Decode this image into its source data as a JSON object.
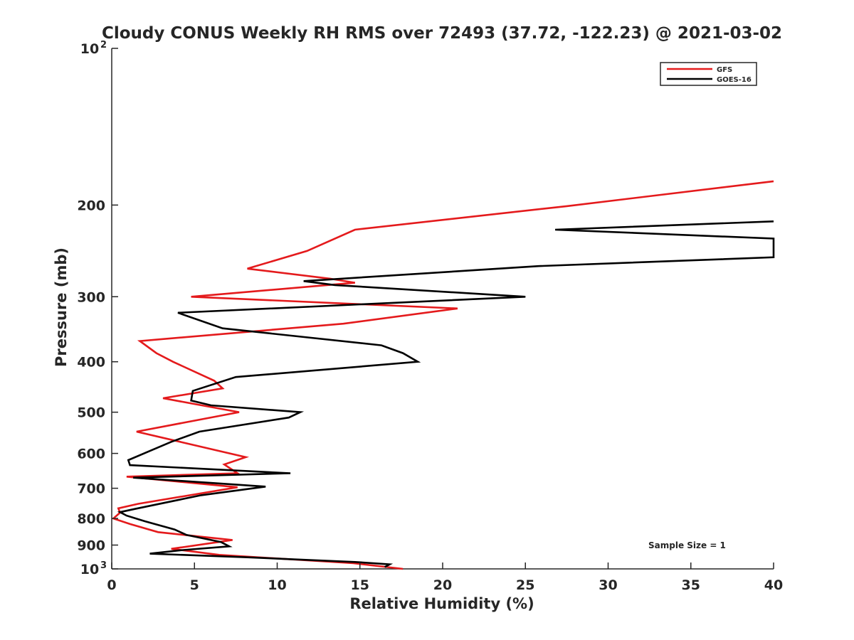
{
  "chart_data": {
    "type": "line",
    "title": "Cloudy CONUS Weekly RH RMS over 72493 (37.72, -122.23) @ 2021-03-02",
    "xlabel": "Relative Humidity (%)",
    "ylabel": "Pressure (mb)",
    "xlim": [
      0,
      40
    ],
    "ylim": [
      100,
      1000
    ],
    "yscale": "log",
    "y_reversed": true,
    "grid": false,
    "legend_position": "top-right",
    "x_ticks": [
      {
        "value": 0,
        "label": "0"
      },
      {
        "value": 5,
        "label": "5"
      },
      {
        "value": 10,
        "label": "10"
      },
      {
        "value": 15,
        "label": "15"
      },
      {
        "value": 20,
        "label": "20"
      },
      {
        "value": 25,
        "label": "25"
      },
      {
        "value": 30,
        "label": "30"
      },
      {
        "value": 35,
        "label": "35"
      },
      {
        "value": 40,
        "label": "40"
      }
    ],
    "y_ticks": [
      {
        "value": 100,
        "base": "10",
        "exp": "2"
      },
      {
        "value": 200,
        "base": "200",
        "exp": ""
      },
      {
        "value": 300,
        "base": "300",
        "exp": ""
      },
      {
        "value": 400,
        "base": "400",
        "exp": ""
      },
      {
        "value": 500,
        "base": "500",
        "exp": ""
      },
      {
        "value": 600,
        "base": "600",
        "exp": ""
      },
      {
        "value": 700,
        "base": "700",
        "exp": ""
      },
      {
        "value": 800,
        "base": "800",
        "exp": ""
      },
      {
        "value": 900,
        "base": "900",
        "exp": ""
      },
      {
        "value": 1000,
        "base": "10",
        "exp": "3"
      }
    ],
    "annotation": "Sample Size = 1",
    "series": [
      {
        "name": "GFS",
        "color": "#e41a1c",
        "points": [
          [
            40,
            180
          ],
          [
            27.5,
            201
          ],
          [
            14.7,
            223
          ],
          [
            11.8,
            245
          ],
          [
            8.2,
            265
          ],
          [
            13.2,
            277
          ],
          [
            14.7,
            282
          ],
          [
            4.8,
            300
          ],
          [
            20.9,
            316
          ],
          [
            14,
            338
          ],
          [
            1.7,
            365
          ],
          [
            2.7,
            385
          ],
          [
            3.7,
            400
          ],
          [
            6.2,
            435
          ],
          [
            6.7,
            450
          ],
          [
            3.1,
            470
          ],
          [
            7.7,
            500
          ],
          [
            1.5,
            545
          ],
          [
            8.1,
            610
          ],
          [
            6.8,
            630
          ],
          [
            7.6,
            655
          ],
          [
            0.9,
            665
          ],
          [
            7.6,
            697
          ],
          [
            1.6,
            750
          ],
          [
            0.4,
            765
          ],
          [
            0.5,
            780
          ],
          [
            0.1,
            800
          ],
          [
            1.1,
            820
          ],
          [
            2.8,
            850
          ],
          [
            7.3,
            880
          ],
          [
            3.6,
            915
          ],
          [
            6.5,
            940
          ],
          [
            14.6,
            975
          ],
          [
            17.6,
            1000
          ]
        ]
      },
      {
        "name": "GOES-16",
        "color": "#000000",
        "points": [
          [
            40,
            215
          ],
          [
            26.8,
            223
          ],
          [
            40,
            232
          ],
          [
            40,
            252
          ],
          [
            25.8,
            262
          ],
          [
            11.6,
            280
          ],
          [
            13.5,
            285
          ],
          [
            25,
            300
          ],
          [
            4,
            322
          ],
          [
            6.7,
            345
          ],
          [
            16.3,
            372
          ],
          [
            17.6,
            385
          ],
          [
            18.5,
            400
          ],
          [
            7.5,
            428
          ],
          [
            4.9,
            455
          ],
          [
            4.8,
            475
          ],
          [
            6,
            485
          ],
          [
            11.4,
            500
          ],
          [
            10.7,
            512
          ],
          [
            5.3,
            545
          ],
          [
            3.6,
            570
          ],
          [
            1,
            618
          ],
          [
            1.1,
            632
          ],
          [
            10.8,
            655
          ],
          [
            1.3,
            668
          ],
          [
            9.3,
            695
          ],
          [
            5.4,
            722
          ],
          [
            1.4,
            767
          ],
          [
            0.5,
            778
          ],
          [
            0.9,
            790
          ],
          [
            2,
            810
          ],
          [
            3.8,
            840
          ],
          [
            4.5,
            860
          ],
          [
            6.6,
            888
          ],
          [
            7.1,
            905
          ],
          [
            4.3,
            920
          ],
          [
            2.3,
            935
          ],
          [
            8.2,
            950
          ],
          [
            14.7,
            970
          ],
          [
            16.8,
            980
          ],
          [
            16.5,
            992
          ]
        ]
      }
    ]
  }
}
